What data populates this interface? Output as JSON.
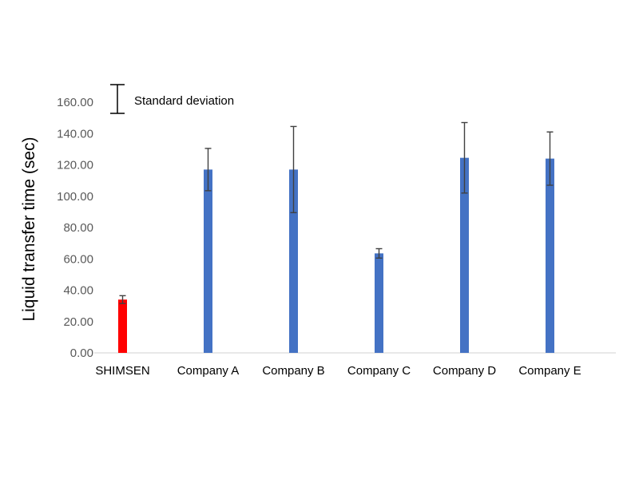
{
  "chart_data": {
    "type": "bar",
    "ylabel": "Liquid transfer time (sec)",
    "xlabel": "",
    "title": "",
    "ylim": [
      0,
      160
    ],
    "ytick_step": 20,
    "y_tick_labels": [
      "0.00",
      "20.00",
      "40.00",
      "60.00",
      "80.00",
      "100.00",
      "120.00",
      "140.00",
      "160.00"
    ],
    "categories": [
      "SHIMSEN",
      "Company A",
      "Company B",
      "Company C",
      "Company D",
      "Company E"
    ],
    "values": [
      34.0,
      117.0,
      117.0,
      63.5,
      124.5,
      124.0
    ],
    "errors": [
      2.5,
      13.5,
      27.5,
      3.0,
      22.5,
      17.0
    ],
    "bar_colors": [
      "#ff0000",
      "#4472c4",
      "#4472c4",
      "#4472c4",
      "#4472c4",
      "#4472c4"
    ],
    "category_label_colors": [
      "#ff0000",
      "#000000",
      "#000000",
      "#000000",
      "#000000",
      "#000000"
    ],
    "legend": {
      "label": "Standard deviation",
      "placement": "top-left"
    },
    "grid": false
  }
}
